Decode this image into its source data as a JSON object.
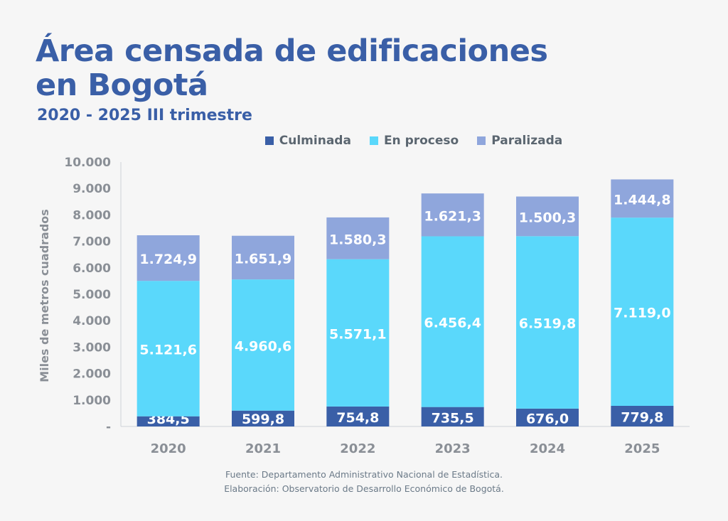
{
  "title_line1": "Área censada de edificaciones",
  "title_line2": "en Bogotá",
  "subtitle": "2020 - 2025 III trimestre",
  "source_line1": "Fuente: Departamento Administrativo Nacional de Estadística.",
  "source_line2": "Elaboración: Observatorio de Desarrollo Económico de Bogotá.",
  "colors": {
    "culminada": "#3a5fa7",
    "en_proceso": "#5ad8fb",
    "paralizada": "#8fa6dc",
    "axis_text": "#8a8f96",
    "title": "#3a5fa7"
  },
  "chart_data": {
    "type": "bar",
    "stacked": true,
    "categories": [
      "2020",
      "2021",
      "2022",
      "2023",
      "2024",
      "2025"
    ],
    "series": [
      {
        "name": "Culminada",
        "values": [
          384.5,
          599.8,
          754.8,
          735.5,
          676.0,
          779.8
        ],
        "labels": [
          "384,5",
          "599,8",
          "754,8",
          "735,5",
          "676,0",
          "779,8"
        ]
      },
      {
        "name": "En proceso",
        "values": [
          5121.6,
          4960.6,
          5571.1,
          6456.4,
          6519.8,
          7119.0
        ],
        "labels": [
          "5.121,6",
          "4.960,6",
          "5.571,1",
          "6.456,4",
          "6.519,8",
          "7.119,0"
        ]
      },
      {
        "name": "Paralizada",
        "values": [
          1724.9,
          1651.9,
          1580.3,
          1621.3,
          1500.3,
          1444.8
        ],
        "labels": [
          "1.724,9",
          "1.651,9",
          "1.580,3",
          "1.621,3",
          "1.500,3",
          "1.444,8"
        ]
      }
    ],
    "ylabel": "Miles de metros cuadrados",
    "ylim": [
      0,
      10000
    ],
    "yticks": [
      0,
      1000,
      2000,
      3000,
      4000,
      5000,
      6000,
      7000,
      8000,
      9000,
      10000
    ],
    "ytick_labels": [
      "-",
      "1.000",
      "2.000",
      "3.000",
      "4.000",
      "5.000",
      "6.000",
      "7.000",
      "8.000",
      "9.000",
      "10.000"
    ],
    "legend_position": "top-center",
    "grid": false
  }
}
